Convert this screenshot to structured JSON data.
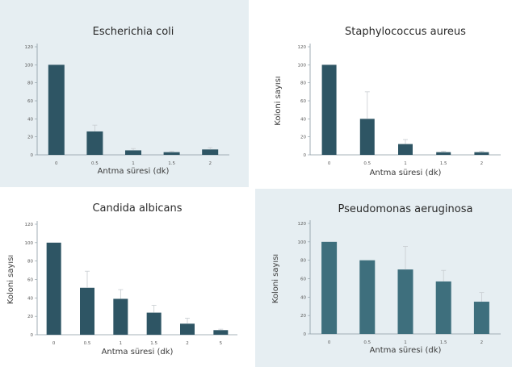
{
  "figure": {
    "panel_bg_shaded": "#e6eef2",
    "panel_bg_plain": "#ffffff",
    "bar_color_dark": "#2e5564",
    "bar_color_light": "#3e6f7d"
  },
  "chart_data": [
    {
      "type": "bar",
      "title": "Escherichia coli",
      "xlabel": "Antma süresi (dk)",
      "ylabel": "",
      "categories": [
        "0",
        "0.5",
        "1",
        "1.5",
        "2"
      ],
      "values": [
        100,
        26,
        5,
        3,
        6
      ],
      "errors": [
        0,
        7,
        2,
        1,
        2
      ],
      "ylim": [
        0,
        120
      ],
      "yticks": [
        "0",
        "20",
        "40",
        "60",
        "80",
        "100",
        "120"
      ],
      "shaded": true,
      "bar_color": "#2e5564"
    },
    {
      "type": "bar",
      "title": "Staphylococcus aureus",
      "xlabel": "Antma süresi (dk)",
      "ylabel": "Koloni sayısı",
      "categories": [
        "0",
        "0.5",
        "1",
        "1.5",
        "2"
      ],
      "values": [
        100,
        40,
        12,
        3,
        3
      ],
      "errors": [
        0,
        30,
        5,
        1,
        1
      ],
      "ylim": [
        0,
        120
      ],
      "yticks": [
        "0",
        "20",
        "40",
        "60",
        "80",
        "100",
        "120"
      ],
      "shaded": false,
      "bar_color": "#2e5564"
    },
    {
      "type": "bar",
      "title": "Candida albicans",
      "xlabel": "Antma süresi (dk)",
      "ylabel": "Koloni sayısı",
      "categories": [
        "0",
        "0.5",
        "1",
        "1.5",
        "2",
        "5"
      ],
      "values": [
        100,
        51,
        39,
        24,
        12,
        5
      ],
      "errors": [
        0,
        18,
        10,
        8,
        6,
        1
      ],
      "ylim": [
        0,
        120
      ],
      "yticks": [
        "0",
        "20",
        "40",
        "60",
        "80",
        "100",
        "120"
      ],
      "shaded": false,
      "bar_color": "#2e5564"
    },
    {
      "type": "bar",
      "title": "Pseudomonas aeruginosa",
      "xlabel": "Antma süresi (dk)",
      "ylabel": "Koloni sayısı",
      "categories": [
        "0",
        "0.5",
        "1",
        "1.5",
        "2"
      ],
      "values": [
        100,
        80,
        70,
        57,
        35
      ],
      "errors": [
        0,
        0,
        25,
        12,
        10
      ],
      "ylim": [
        0,
        120
      ],
      "yticks": [
        "0",
        "20",
        "40",
        "60",
        "80",
        "100",
        "120"
      ],
      "shaded": true,
      "bar_color": "#3e6f7d"
    }
  ]
}
